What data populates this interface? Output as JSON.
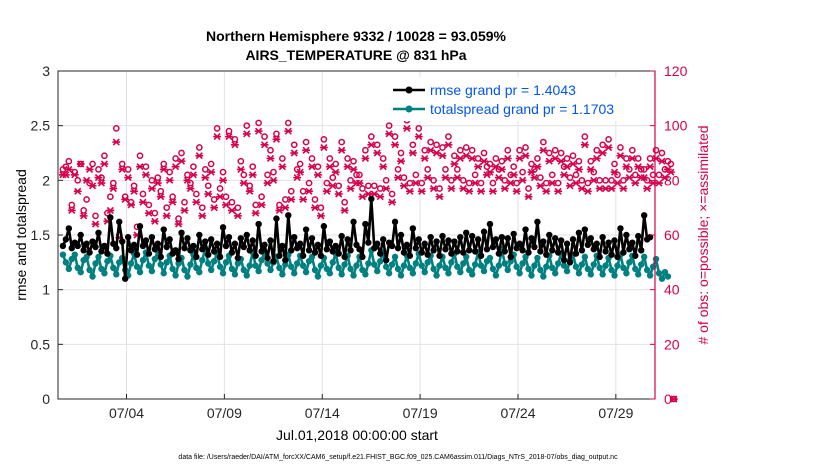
{
  "chart_data": {
    "type": "line",
    "title": "Northern Hemisphere 9332 / 10028 = 93.059%",
    "subtitle": "AIRS_TEMPERATURE @ 831 hPa",
    "xlabel": "Jul.01,2018 00:00:00 start",
    "ylabel_left": "rmse and totalspread",
    "ylabel_right": "# of obs: o=possible; ×=assimilated",
    "footer": "data file: /Users/raeder/DAI/ATM_forcXX/CAM6_setup/f.e21.FHIST_BGC.f09_025.CAM6assim.011/Diags_NTrS_2018-07/obs_diag_output.nc",
    "x_range": [
      0.5,
      31.0
    ],
    "ylim_left": [
      0,
      3
    ],
    "ylim_right": [
      0,
      120
    ],
    "yticks_left": [
      "0",
      "0.5",
      "1",
      "1.5",
      "2",
      "2.5",
      "3"
    ],
    "yticks_right": [
      "0",
      "20",
      "40",
      "60",
      "80",
      "100",
      "120"
    ],
    "xtick_values": [
      4,
      9,
      14,
      19,
      24,
      29
    ],
    "xtick_labels": [
      "07/04",
      "07/09",
      "07/14",
      "07/19",
      "07/24",
      "07/29"
    ],
    "colors": {
      "rmse": "#000000",
      "spread": "#008080",
      "obs": "#d6004c",
      "legend_text": "#0055ee"
    },
    "series": [
      {
        "name": "rmse grand pr = 1.4043",
        "values": [
          1.4,
          1.46,
          1.56,
          1.38,
          1.43,
          1.4,
          1.5,
          1.36,
          1.42,
          1.34,
          1.44,
          1.39,
          1.52,
          1.35,
          1.4,
          1.33,
          1.66,
          1.42,
          1.38,
          1.62,
          1.44,
          1.1,
          1.48,
          1.36,
          1.41,
          1.32,
          1.58,
          1.4,
          1.45,
          1.33,
          1.48,
          1.37,
          1.42,
          1.3,
          1.55,
          1.39,
          1.46,
          1.33,
          1.36,
          1.28,
          1.52,
          1.38,
          1.47,
          1.36,
          1.4,
          1.3,
          1.5,
          1.37,
          1.44,
          1.32,
          1.46,
          1.35,
          1.42,
          1.3,
          1.57,
          1.4,
          1.48,
          1.34,
          1.42,
          1.29,
          1.47,
          1.39,
          1.5,
          1.36,
          1.45,
          1.31,
          1.6,
          1.35,
          1.41,
          1.29,
          1.45,
          1.26,
          1.65,
          1.31,
          1.4,
          1.27,
          1.68,
          1.36,
          1.48,
          1.38,
          1.42,
          1.31,
          1.55,
          1.36,
          1.47,
          1.34,
          1.41,
          1.31,
          1.58,
          1.37,
          1.44,
          1.35,
          1.4,
          1.33,
          1.49,
          1.3,
          1.46,
          1.36,
          1.62,
          1.41,
          1.37,
          1.3,
          1.6,
          1.43,
          1.83,
          1.38,
          1.42,
          1.33,
          1.46,
          1.27,
          1.43,
          1.4,
          1.62,
          1.38,
          1.5,
          1.34,
          1.41,
          1.31,
          1.56,
          1.38,
          1.46,
          1.34,
          1.42,
          1.32,
          1.48,
          1.36,
          1.44,
          1.31,
          1.49,
          1.37,
          1.45,
          1.33,
          1.44,
          1.35,
          1.48,
          1.34,
          1.52,
          1.36,
          1.49,
          1.35,
          1.46,
          1.31,
          1.53,
          1.37,
          1.6,
          1.39,
          1.46,
          1.33,
          1.48,
          1.35,
          1.47,
          1.3,
          1.51,
          1.38,
          1.42,
          1.36,
          1.55,
          1.34,
          1.47,
          1.39,
          1.62,
          1.35,
          1.44,
          1.32,
          1.5,
          1.36,
          1.47,
          1.34,
          1.45,
          1.27,
          1.42,
          1.25,
          1.46,
          1.33,
          1.52,
          1.36,
          1.55,
          1.41,
          1.47,
          1.37,
          1.42,
          1.3,
          1.48,
          1.35,
          1.43,
          1.32,
          1.45,
          1.3,
          1.56,
          1.34,
          1.5,
          1.37,
          1.43,
          1.31,
          1.49,
          1.36,
          1.68,
          1.46,
          1.48
        ]
      },
      {
        "name": "totalspread grand pr = 1.1703",
        "values": [
          1.32,
          1.25,
          1.19,
          1.28,
          1.32,
          1.2,
          1.16,
          1.27,
          1.3,
          1.18,
          1.12,
          1.24,
          1.3,
          1.19,
          1.15,
          1.26,
          1.31,
          1.2,
          1.14,
          1.25,
          1.29,
          1.18,
          1.13,
          1.24,
          1.33,
          1.21,
          1.16,
          1.27,
          1.34,
          1.22,
          1.17,
          1.28,
          1.35,
          1.23,
          1.15,
          1.25,
          1.31,
          1.19,
          1.13,
          1.24,
          1.29,
          1.18,
          1.12,
          1.23,
          1.32,
          1.2,
          1.16,
          1.27,
          1.37,
          1.24,
          1.18,
          1.26,
          1.33,
          1.21,
          1.15,
          1.25,
          1.31,
          1.19,
          1.14,
          1.24,
          1.28,
          1.18,
          1.13,
          1.22,
          1.34,
          1.22,
          1.17,
          1.27,
          1.35,
          1.24,
          1.18,
          1.25,
          1.3,
          1.2,
          1.14,
          1.23,
          1.32,
          1.21,
          1.15,
          1.24,
          1.31,
          1.22,
          1.16,
          1.26,
          1.3,
          1.18,
          1.12,
          1.22,
          1.29,
          1.19,
          1.15,
          1.25,
          1.33,
          1.2,
          1.14,
          1.23,
          1.31,
          1.19,
          1.13,
          1.22,
          1.3,
          1.18,
          1.14,
          1.24,
          1.36,
          1.23,
          1.17,
          1.26,
          1.34,
          1.21,
          1.15,
          1.23,
          1.3,
          1.19,
          1.13,
          1.22,
          1.31,
          1.2,
          1.15,
          1.24,
          1.33,
          1.22,
          1.16,
          1.25,
          1.31,
          1.19,
          1.13,
          1.22,
          1.3,
          1.2,
          1.15,
          1.25,
          1.33,
          1.21,
          1.16,
          1.24,
          1.3,
          1.18,
          1.14,
          1.23,
          1.34,
          1.22,
          1.17,
          1.26,
          1.29,
          1.19,
          1.13,
          1.22,
          1.37,
          1.24,
          1.18,
          1.26,
          1.32,
          1.21,
          1.15,
          1.24,
          1.3,
          1.19,
          1.13,
          1.22,
          1.29,
          1.18,
          1.12,
          1.21,
          1.31,
          1.2,
          1.15,
          1.24,
          1.33,
          1.22,
          1.17,
          1.27,
          1.32,
          1.21,
          1.15,
          1.23,
          1.3,
          1.19,
          1.14,
          1.23,
          1.31,
          1.2,
          1.14,
          1.22,
          1.29,
          1.18,
          1.13,
          1.22,
          1.32,
          1.2,
          1.15,
          1.25,
          1.31,
          1.19,
          1.14,
          1.23,
          1.3,
          1.18,
          1.13,
          1.21,
          1.28,
          1.15,
          1.1,
          1.16,
          1.12
        ]
      },
      {
        "name": "obs possible (o)",
        "axis": "right",
        "values": [
          84,
          85,
          87,
          71,
          83,
          80,
          86,
          69,
          73,
          79,
          86,
          67,
          84,
          81,
          89,
          68,
          74,
          79,
          99,
          60,
          86,
          74,
          84,
          72,
          78,
          63,
          89,
          75,
          85,
          71,
          80,
          68,
          81,
          76,
          86,
          70,
          83,
          74,
          88,
          66,
          90,
          72,
          82,
          79,
          85,
          75,
          92,
          70,
          84,
          78,
          86,
          73,
          99,
          77,
          83,
          74,
          98,
          72,
          95,
          70,
          87,
          82,
          100,
          78,
          85,
          71,
          101,
          74,
          96,
          82,
          91,
          83,
          97,
          71,
          88,
          73,
          101,
          76,
          93,
          84,
          86,
          76,
          94,
          79,
          88,
          73,
          85,
          70,
          95,
          79,
          88,
          81,
          86,
          78,
          94,
          72,
          88,
          80,
          87,
          82,
          82,
          77,
          91,
          78,
          96,
          78,
          93,
          77,
          88,
          80,
          100,
          75,
          96,
          84,
          90,
          81,
          102,
          79,
          93,
          82,
          99,
          79,
          91,
          84,
          94,
          80,
          93,
          77,
          92,
          84,
          96,
          80,
          89,
          84,
          91,
          80,
          92,
          79,
          91,
          82,
          88,
          79,
          90,
          85,
          86,
          79,
          88,
          84,
          87,
          80,
          91,
          82,
          85,
          79,
          91,
          83,
          92,
          77,
          86,
          84,
          88,
          81,
          94,
          79,
          90,
          82,
          91,
          79,
          90,
          85,
          88,
          81,
          89,
          82,
          87,
          80,
          96,
          79,
          87,
          83,
          91,
          80,
          93,
          80,
          95,
          80,
          86,
          82,
          92,
          80,
          88,
          84,
          91,
          82,
          88,
          84,
          84,
          80,
          88,
          82,
          91,
          82,
          90,
          84,
          87,
          86,
          0
        ]
      },
      {
        "name": "obs assimilated (×)",
        "axis": "right",
        "values": [
          82,
          82,
          84,
          69,
          82,
          76,
          86,
          67,
          80,
          84,
          78,
          64,
          81,
          79,
          86,
          65,
          69,
          77,
          94,
          59,
          84,
          73,
          81,
          71,
          76,
          60,
          85,
          72,
          82,
          68,
          77,
          65,
          79,
          74,
          84,
          67,
          80,
          72,
          85,
          64,
          87,
          69,
          80,
          77,
          82,
          72,
          89,
          67,
          81,
          75,
          83,
          70,
          96,
          74,
          80,
          71,
          96,
          69,
          93,
          67,
          84,
          79,
          97,
          76,
          82,
          68,
          98,
          71,
          93,
          79,
          88,
          80,
          95,
          69,
          85,
          70,
          98,
          73,
          90,
          81,
          83,
          73,
          91,
          76,
          85,
          70,
          82,
          67,
          92,
          76,
          85,
          78,
          83,
          75,
          91,
          69,
          85,
          77,
          84,
          79,
          79,
          74,
          88,
          75,
          93,
          75,
          90,
          74,
          85,
          77,
          97,
          72,
          93,
          81,
          87,
          78,
          99,
          76,
          90,
          79,
          96,
          76,
          88,
          81,
          91,
          77,
          90,
          74,
          89,
          81,
          93,
          77,
          86,
          81,
          88,
          77,
          89,
          76,
          88,
          79,
          85,
          76,
          87,
          82,
          83,
          76,
          85,
          81,
          84,
          77,
          88,
          79,
          82,
          76,
          88,
          80,
          89,
          74,
          83,
          81,
          85,
          78,
          91,
          76,
          87,
          79,
          88,
          76,
          87,
          82,
          85,
          78,
          86,
          79,
          84,
          77,
          93,
          76,
          84,
          80,
          88,
          77,
          90,
          77,
          92,
          77,
          83,
          79,
          89,
          77,
          85,
          81,
          88,
          79,
          85,
          81,
          81,
          77,
          85,
          79,
          88,
          79,
          87,
          81,
          84,
          83,
          0
        ]
      }
    ]
  }
}
